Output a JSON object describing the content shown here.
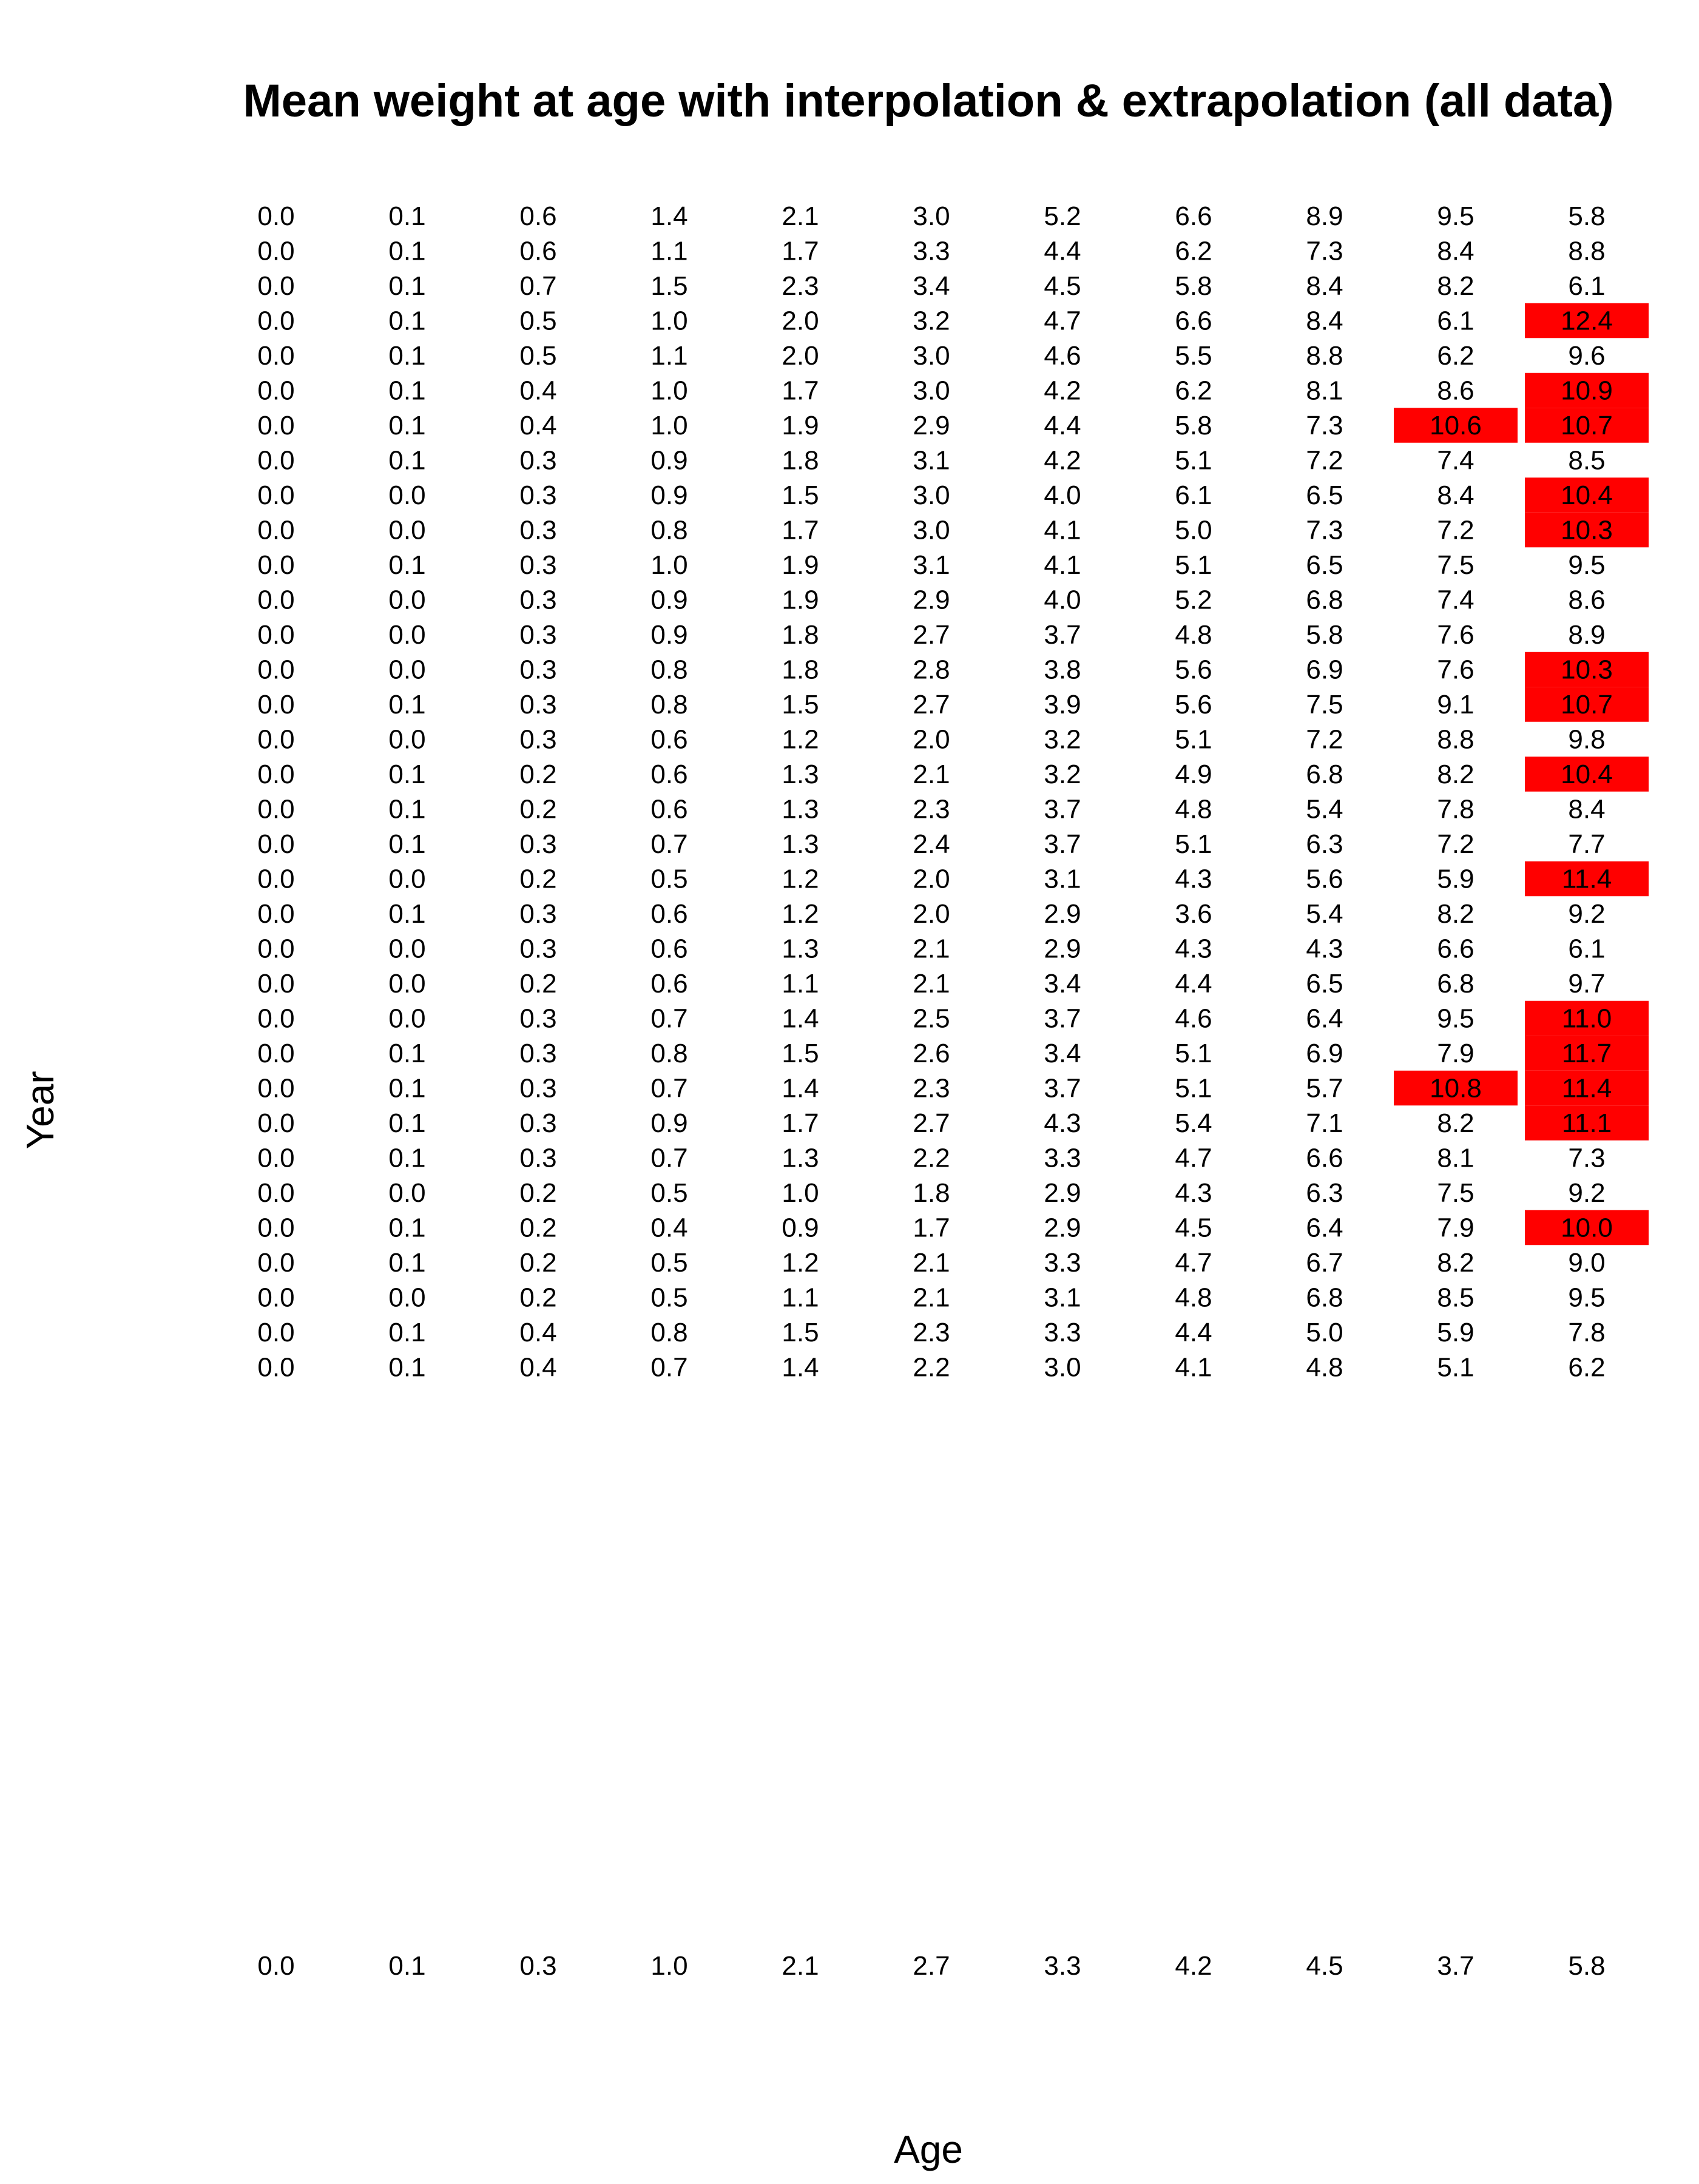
{
  "chart_data": {
    "type": "heatmap",
    "title": "Mean weight at age with interpolation & extrapolation (all data)",
    "xlabel": "Age",
    "ylabel": "Year",
    "highlight_color": "#ff0000",
    "highlight_threshold": 10.0,
    "main_rows": [
      [
        0.0,
        0.1,
        0.6,
        1.4,
        2.1,
        3.0,
        5.2,
        6.6,
        8.9,
        9.5,
        5.8
      ],
      [
        0.0,
        0.1,
        0.6,
        1.1,
        1.7,
        3.3,
        4.4,
        6.2,
        7.3,
        8.4,
        8.8
      ],
      [
        0.0,
        0.1,
        0.7,
        1.5,
        2.3,
        3.4,
        4.5,
        5.8,
        8.4,
        8.2,
        6.1
      ],
      [
        0.0,
        0.1,
        0.5,
        1.0,
        2.0,
        3.2,
        4.7,
        6.6,
        8.4,
        6.1,
        12.4
      ],
      [
        0.0,
        0.1,
        0.5,
        1.1,
        2.0,
        3.0,
        4.6,
        5.5,
        8.8,
        6.2,
        9.6
      ],
      [
        0.0,
        0.1,
        0.4,
        1.0,
        1.7,
        3.0,
        4.2,
        6.2,
        8.1,
        8.6,
        10.9
      ],
      [
        0.0,
        0.1,
        0.4,
        1.0,
        1.9,
        2.9,
        4.4,
        5.8,
        7.3,
        10.6,
        10.7
      ],
      [
        0.0,
        0.1,
        0.3,
        0.9,
        1.8,
        3.1,
        4.2,
        5.1,
        7.2,
        7.4,
        8.5
      ],
      [
        0.0,
        0.0,
        0.3,
        0.9,
        1.5,
        3.0,
        4.0,
        6.1,
        6.5,
        8.4,
        10.4
      ],
      [
        0.0,
        0.0,
        0.3,
        0.8,
        1.7,
        3.0,
        4.1,
        5.0,
        7.3,
        7.2,
        10.3
      ],
      [
        0.0,
        0.1,
        0.3,
        1.0,
        1.9,
        3.1,
        4.1,
        5.1,
        6.5,
        7.5,
        9.5
      ],
      [
        0.0,
        0.0,
        0.3,
        0.9,
        1.9,
        2.9,
        4.0,
        5.2,
        6.8,
        7.4,
        8.6
      ],
      [
        0.0,
        0.0,
        0.3,
        0.9,
        1.8,
        2.7,
        3.7,
        4.8,
        5.8,
        7.6,
        8.9
      ],
      [
        0.0,
        0.0,
        0.3,
        0.8,
        1.8,
        2.8,
        3.8,
        5.6,
        6.9,
        7.6,
        10.3
      ],
      [
        0.0,
        0.1,
        0.3,
        0.8,
        1.5,
        2.7,
        3.9,
        5.6,
        7.5,
        9.1,
        10.7
      ],
      [
        0.0,
        0.0,
        0.3,
        0.6,
        1.2,
        2.0,
        3.2,
        5.1,
        7.2,
        8.8,
        9.8
      ],
      [
        0.0,
        0.1,
        0.2,
        0.6,
        1.3,
        2.1,
        3.2,
        4.9,
        6.8,
        8.2,
        10.4
      ],
      [
        0.0,
        0.1,
        0.2,
        0.6,
        1.3,
        2.3,
        3.7,
        4.8,
        5.4,
        7.8,
        8.4
      ],
      [
        0.0,
        0.1,
        0.3,
        0.7,
        1.3,
        2.4,
        3.7,
        5.1,
        6.3,
        7.2,
        7.7
      ],
      [
        0.0,
        0.0,
        0.2,
        0.5,
        1.2,
        2.0,
        3.1,
        4.3,
        5.6,
        5.9,
        11.4
      ],
      [
        0.0,
        0.1,
        0.3,
        0.6,
        1.2,
        2.0,
        2.9,
        3.6,
        5.4,
        8.2,
        9.2
      ],
      [
        0.0,
        0.0,
        0.3,
        0.6,
        1.3,
        2.1,
        2.9,
        4.3,
        4.3,
        6.6,
        6.1
      ],
      [
        0.0,
        0.0,
        0.2,
        0.6,
        1.1,
        2.1,
        3.4,
        4.4,
        6.5,
        6.8,
        9.7
      ],
      [
        0.0,
        0.0,
        0.3,
        0.7,
        1.4,
        2.5,
        3.7,
        4.6,
        6.4,
        9.5,
        11.0
      ],
      [
        0.0,
        0.1,
        0.3,
        0.8,
        1.5,
        2.6,
        3.4,
        5.1,
        6.9,
        7.9,
        11.7
      ],
      [
        0.0,
        0.1,
        0.3,
        0.7,
        1.4,
        2.3,
        3.7,
        5.1,
        5.7,
        10.8,
        11.4
      ],
      [
        0.0,
        0.1,
        0.3,
        0.9,
        1.7,
        2.7,
        4.3,
        5.4,
        7.1,
        8.2,
        11.1
      ],
      [
        0.0,
        0.1,
        0.3,
        0.7,
        1.3,
        2.2,
        3.3,
        4.7,
        6.6,
        8.1,
        7.3
      ],
      [
        0.0,
        0.0,
        0.2,
        0.5,
        1.0,
        1.8,
        2.9,
        4.3,
        6.3,
        7.5,
        9.2
      ],
      [
        0.0,
        0.1,
        0.2,
        0.4,
        0.9,
        1.7,
        2.9,
        4.5,
        6.4,
        7.9,
        10.0
      ],
      [
        0.0,
        0.1,
        0.2,
        0.5,
        1.2,
        2.1,
        3.3,
        4.7,
        6.7,
        8.2,
        9.0
      ],
      [
        0.0,
        0.0,
        0.2,
        0.5,
        1.1,
        2.1,
        3.1,
        4.8,
        6.8,
        8.5,
        9.5
      ],
      [
        0.0,
        0.1,
        0.4,
        0.8,
        1.5,
        2.3,
        3.3,
        4.4,
        5.0,
        5.9,
        7.8
      ],
      [
        0.0,
        0.1,
        0.4,
        0.7,
        1.4,
        2.2,
        3.0,
        4.1,
        4.8,
        5.1,
        6.2
      ]
    ],
    "bottom_row": [
      0.0,
      0.1,
      0.3,
      1.0,
      2.1,
      2.7,
      3.3,
      4.2,
      4.5,
      3.7,
      5.8
    ]
  }
}
